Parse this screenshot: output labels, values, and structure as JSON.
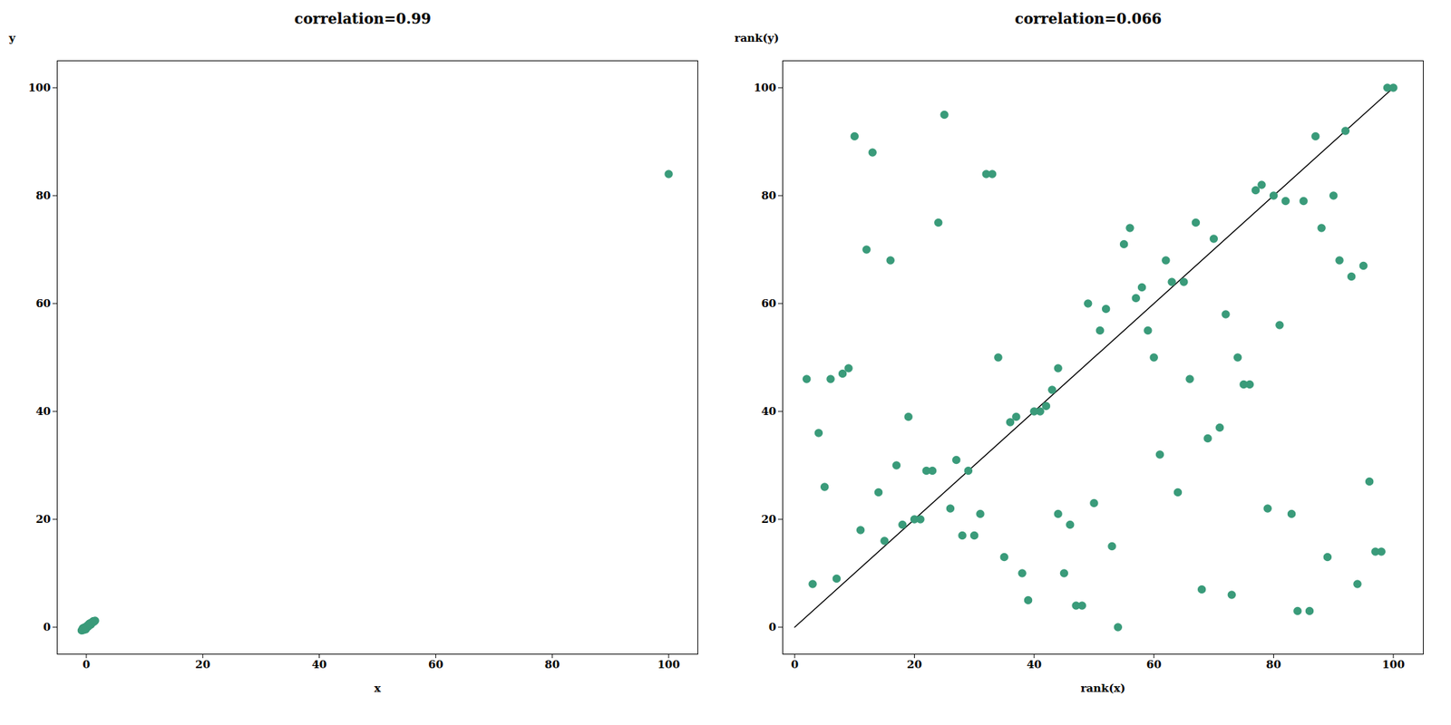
{
  "chart_data": [
    {
      "type": "scatter",
      "title": "correlation=0.99",
      "xlabel": "x",
      "ylabel": "y",
      "color": "#3a9b7a",
      "marker": "circle",
      "grid": false,
      "xlim": [
        -5,
        105
      ],
      "ylim": [
        -5,
        105
      ],
      "xticks": [
        0,
        20,
        40,
        60,
        80,
        100
      ],
      "yticks": [
        0,
        20,
        40,
        60,
        80,
        100
      ],
      "x": [
        0.3,
        -0.2,
        0.5,
        0.1,
        -0.3,
        0.8,
        0.2,
        -0.1,
        0.6,
        -0.4,
        1.1,
        -0.5,
        0.9,
        0.3,
        -0.6,
        0.4,
        1.0,
        -0.2,
        0.7,
        -0.3,
        1.5,
        0.1,
        -0.8,
        0.6,
        0.2,
        -0.1,
        1.2,
        0.8,
        -0.4,
        0.3,
        0.5,
        -0.3,
        0.9,
        0.1,
        1.3,
        -0.2,
        0.6,
        0.4,
        -0.5,
        0.3,
        0.7,
        -0.6,
        1.0,
        0.2,
        -0.1,
        0.8,
        0.5,
        -0.3,
        0.4,
        1.2,
        100.0
      ],
      "values": [
        0.2,
        -0.3,
        0.6,
        0.1,
        -0.2,
        0.5,
        0.3,
        -0.4,
        0.7,
        -0.1,
        1.0,
        -0.5,
        0.8,
        0.2,
        -0.2,
        0.4,
        0.9,
        -0.3,
        0.6,
        -0.1,
        1.2,
        0.2,
        -0.6,
        0.5,
        0.1,
        -0.2,
        1.1,
        0.7,
        -0.4,
        0.2,
        0.6,
        -0.1,
        0.8,
        0.2,
        1.0,
        -0.3,
        0.5,
        0.4,
        -0.5,
        0.1,
        0.7,
        -0.4,
        0.9,
        0.2,
        -0.2,
        0.6,
        0.3,
        -0.1,
        0.5,
        1.1,
        84.0
      ]
    },
    {
      "type": "scatter",
      "title": "correlation=0.066",
      "xlabel": "rank(x)",
      "ylabel": "rank(y)",
      "color": "#3a9b7a",
      "marker": "circle",
      "grid": false,
      "xlim": [
        -2,
        105
      ],
      "ylim": [
        -5,
        105
      ],
      "xticks": [
        0,
        20,
        40,
        60,
        80,
        100
      ],
      "yticks": [
        0,
        20,
        40,
        60,
        80,
        100
      ],
      "diagonal": {
        "x": [
          0,
          100
        ],
        "y": [
          0,
          100
        ]
      },
      "x": [
        3,
        8,
        10,
        12,
        16,
        19,
        22,
        25,
        28,
        32,
        35,
        38,
        41,
        44,
        47,
        51,
        54,
        57,
        60,
        63,
        66,
        69,
        72,
        75,
        78,
        81,
        84,
        87,
        90,
        93,
        96,
        99,
        5,
        14,
        18,
        23,
        27,
        31,
        36,
        40,
        43,
        46,
        50,
        53,
        56,
        62,
        67,
        70,
        74,
        77,
        80,
        85,
        88,
        92,
        95,
        98,
        100,
        6,
        9,
        13,
        17,
        20,
        24,
        29,
        33,
        37,
        42,
        45,
        48,
        52,
        55,
        58,
        65,
        71,
        76,
        82,
        86,
        89,
        91,
        94,
        97,
        4,
        11,
        15,
        26,
        30,
        34,
        39,
        49,
        59,
        64,
        68,
        73,
        79,
        83,
        2,
        7,
        21,
        44,
        61
      ],
      "values": [
        8,
        47,
        91,
        70,
        68,
        39,
        29,
        95,
        17,
        84,
        13,
        10,
        40,
        21,
        4,
        55,
        0,
        61,
        50,
        64,
        46,
        35,
        58,
        45,
        82,
        56,
        3,
        91,
        80,
        65,
        27,
        100,
        26,
        25,
        19,
        29,
        31,
        21,
        38,
        40,
        44,
        19,
        23,
        15,
        74,
        68,
        75,
        72,
        50,
        81,
        80,
        79,
        74,
        92,
        67,
        14,
        100,
        46,
        48,
        88,
        30,
        20,
        75,
        29,
        84,
        39,
        41,
        10,
        4,
        59,
        71,
        63,
        64,
        37,
        45,
        79,
        3,
        13,
        68,
        8,
        14,
        36,
        18,
        16,
        22,
        17,
        50,
        5,
        60,
        55,
        25,
        7,
        6,
        22,
        21,
        46,
        9,
        20,
        48,
        32
      ]
    }
  ]
}
